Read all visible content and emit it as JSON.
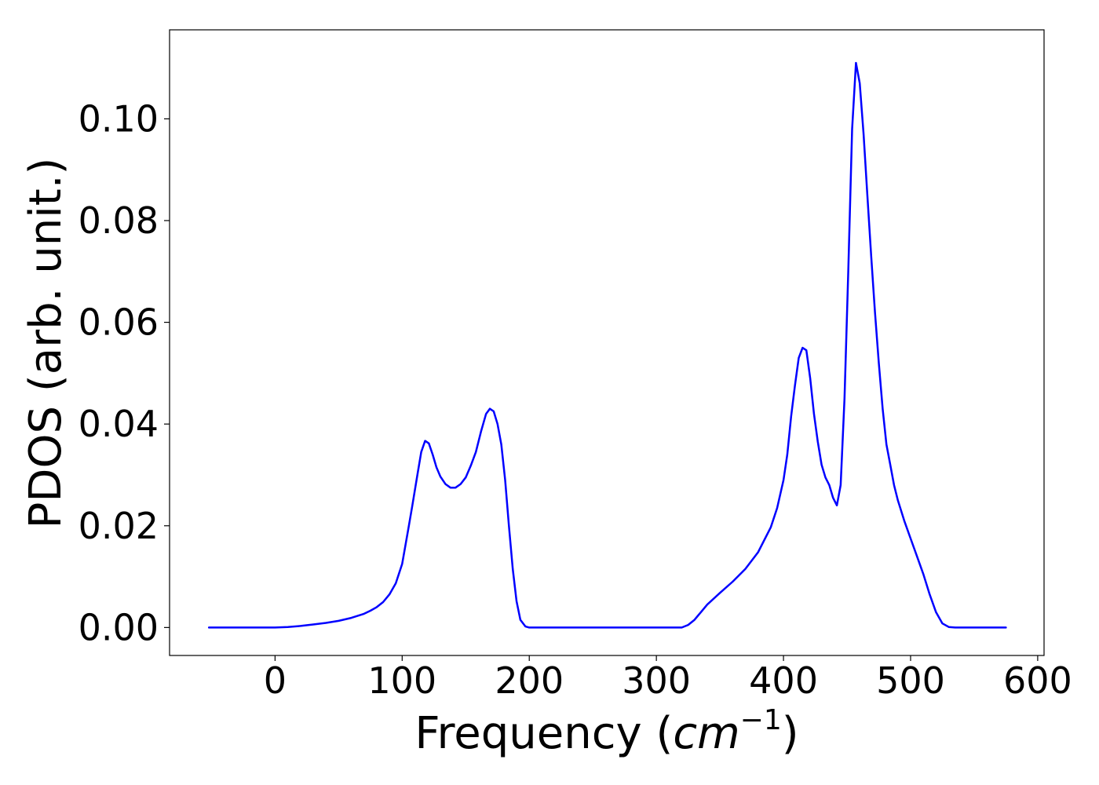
{
  "chart_data": {
    "type": "line",
    "title": "",
    "xlabel_prefix": "Frequency (",
    "xlabel_unit_base": "cm",
    "xlabel_unit_exp": "−1",
    "xlabel_suffix": ")",
    "ylabel": "PDOS (arb. unit.)",
    "xlim": [
      -83,
      605
    ],
    "ylim": [
      -0.0055,
      0.1175
    ],
    "xticks": [
      0,
      100,
      200,
      300,
      400,
      500,
      600
    ],
    "xtick_labels": [
      "0",
      "100",
      "200",
      "300",
      "400",
      "500",
      "600"
    ],
    "yticks": [
      0.0,
      0.02,
      0.04,
      0.06,
      0.08,
      0.1
    ],
    "ytick_labels": [
      "0.00",
      "0.02",
      "0.04",
      "0.06",
      "0.08",
      "0.10"
    ],
    "grid": false,
    "series": [
      {
        "color": "#0000ff",
        "x": [
          -52,
          -20,
          0,
          10,
          20,
          30,
          40,
          50,
          60,
          70,
          75,
          80,
          85,
          90,
          95,
          100,
          105,
          108,
          112,
          115,
          118,
          121,
          124,
          127,
          130,
          134,
          138,
          142,
          146,
          150,
          154,
          158,
          162,
          166,
          169,
          172,
          175,
          178,
          181,
          184,
          187,
          190,
          193,
          197,
          200,
          210,
          250,
          300,
          320,
          325,
          330,
          335,
          340,
          350,
          360,
          370,
          380,
          390,
          395,
          400,
          403,
          406,
          409,
          412,
          415,
          418,
          421,
          424,
          427,
          430,
          433,
          436,
          439,
          442,
          445,
          448,
          451,
          454,
          457,
          460,
          463,
          466,
          469,
          472,
          475,
          478,
          481,
          484,
          487,
          490,
          495,
          500,
          505,
          510,
          515,
          520,
          525,
          530,
          535,
          540,
          560,
          575
        ],
        "y": [
          0.0,
          0.0,
          0.0,
          0.0001,
          0.0003,
          0.0006,
          0.0009,
          0.0013,
          0.0019,
          0.0027,
          0.0033,
          0.004,
          0.005,
          0.0065,
          0.0087,
          0.0125,
          0.0196,
          0.024,
          0.03,
          0.0345,
          0.0367,
          0.0362,
          0.034,
          0.0315,
          0.0297,
          0.0282,
          0.0275,
          0.0275,
          0.0282,
          0.0295,
          0.0318,
          0.0345,
          0.0385,
          0.042,
          0.043,
          0.0425,
          0.04,
          0.036,
          0.029,
          0.02,
          0.0115,
          0.0052,
          0.0015,
          0.0002,
          0.0,
          0.0,
          0.0,
          0.0,
          0.0,
          0.0005,
          0.0015,
          0.003,
          0.0045,
          0.0068,
          0.009,
          0.0115,
          0.0148,
          0.0197,
          0.0235,
          0.029,
          0.034,
          0.0415,
          0.0475,
          0.053,
          0.055,
          0.0545,
          0.049,
          0.042,
          0.0365,
          0.032,
          0.0295,
          0.028,
          0.0255,
          0.024,
          0.028,
          0.045,
          0.07,
          0.098,
          0.111,
          0.107,
          0.097,
          0.085,
          0.073,
          0.062,
          0.052,
          0.043,
          0.036,
          0.032,
          0.028,
          0.025,
          0.021,
          0.0175,
          0.014,
          0.0105,
          0.0065,
          0.003,
          0.0008,
          0.0001,
          0.0,
          0.0,
          0.0,
          0.0
        ]
      }
    ]
  }
}
